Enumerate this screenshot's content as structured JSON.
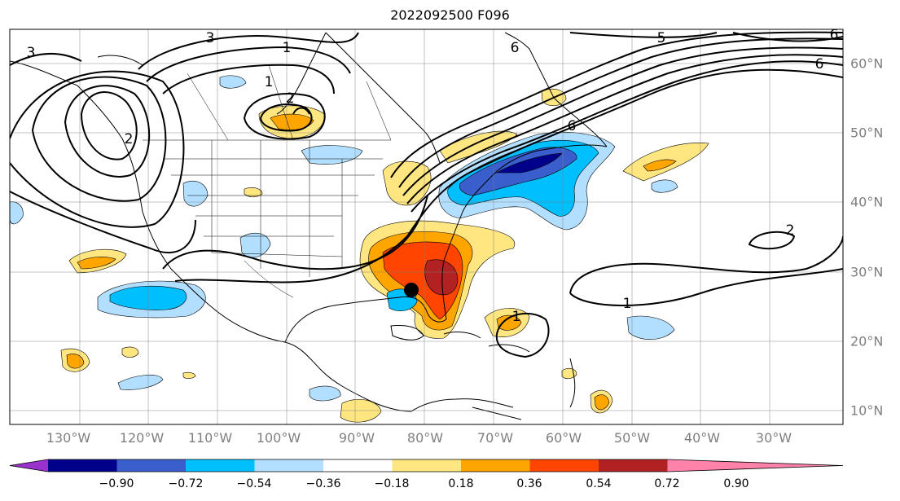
{
  "title": "2022092500 F096",
  "lon_labels": [
    "130°W",
    "120°W",
    "110°W",
    "100°W",
    "90°W",
    "80°W",
    "70°W",
    "60°W",
    "50°W",
    "40°W",
    "30°W"
  ],
  "lat_labels": [
    "60°N",
    "50°N",
    "40°N",
    "30°N",
    "20°N",
    "10°N"
  ],
  "contour_labels": [
    "3",
    "3",
    "1",
    "2",
    "2",
    "6",
    "5",
    "6",
    "6",
    "2",
    "1",
    "1",
    "1",
    "6"
  ],
  "colorbar": {
    "ticks": [
      "−0.90",
      "−0.72",
      "−0.54",
      "−0.36",
      "−0.18",
      "0.18",
      "0.36",
      "0.54",
      "0.72",
      "0.90"
    ],
    "colors": [
      "#9932cc",
      "#00008b",
      "#3a5fcd",
      "#00bfff",
      "#b2dfff",
      "#ffffff",
      "#ffe680",
      "#ffa500",
      "#ff4500",
      "#b22222",
      "#ff82ab"
    ]
  },
  "marker": "storm-center-dot"
}
